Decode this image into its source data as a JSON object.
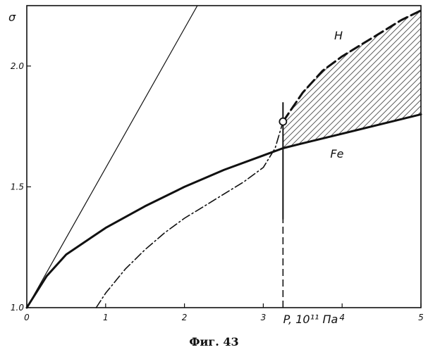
{
  "caption": "Фиг. 43",
  "chart_data": {
    "type": "line",
    "title": "",
    "xlabel": "P, 10¹¹ Па",
    "ylabel": "σ",
    "xlim": [
      0,
      5
    ],
    "ylim": [
      1.0,
      2.25
    ],
    "x_ticks": [
      "0",
      "1",
      "2",
      "3",
      "4",
      "5"
    ],
    "y_ticks": [
      "1.0",
      "1.5",
      "2.0"
    ],
    "grid": false,
    "series": [
      {
        "name": "",
        "style": "thin-solid",
        "x": [
          0,
          2.25
        ],
        "y": [
          1.0,
          2.3
        ]
      },
      {
        "name": "Fe",
        "style": "thick-solid",
        "x": [
          0,
          0.25,
          0.5,
          1.0,
          1.5,
          2.0,
          2.5,
          3.0,
          3.25,
          3.5,
          4.0,
          4.5,
          5.0
        ],
        "y": [
          1.0,
          1.13,
          1.22,
          1.33,
          1.42,
          1.5,
          1.57,
          1.63,
          1.66,
          1.68,
          1.72,
          1.76,
          1.8
        ]
      },
      {
        "name": "",
        "style": "dash-dot",
        "x": [
          0.88,
          1.0,
          1.25,
          1.5,
          1.75,
          2.0,
          2.25,
          2.5,
          2.75,
          3.0,
          3.15,
          3.25
        ],
        "y": [
          1.0,
          1.06,
          1.16,
          1.24,
          1.31,
          1.37,
          1.42,
          1.47,
          1.52,
          1.58,
          1.66,
          1.77
        ]
      },
      {
        "name": "H",
        "style": "dashed-thick",
        "x": [
          3.25,
          3.5,
          3.75,
          4.0,
          4.25,
          4.5,
          4.75,
          5.0
        ],
        "y": [
          1.77,
          1.89,
          1.98,
          2.04,
          2.09,
          2.14,
          2.19,
          2.23
        ]
      }
    ],
    "vertical_line": {
      "x": 3.25,
      "y_from": 1.0,
      "y_to": 1.85,
      "style": "dashed"
    },
    "marker": {
      "x": 3.25,
      "y": 1.77,
      "style": "open-circle"
    },
    "shaded_region": {
      "between": [
        "H",
        "Fe"
      ],
      "x_from": 3.25,
      "x_to": 5.0,
      "pattern": "diagonal-hatch"
    },
    "annotations": [
      {
        "text": "H",
        "x": 3.9,
        "y": 2.11
      },
      {
        "text": "Fe",
        "x": 3.85,
        "y": 1.62
      }
    ]
  }
}
